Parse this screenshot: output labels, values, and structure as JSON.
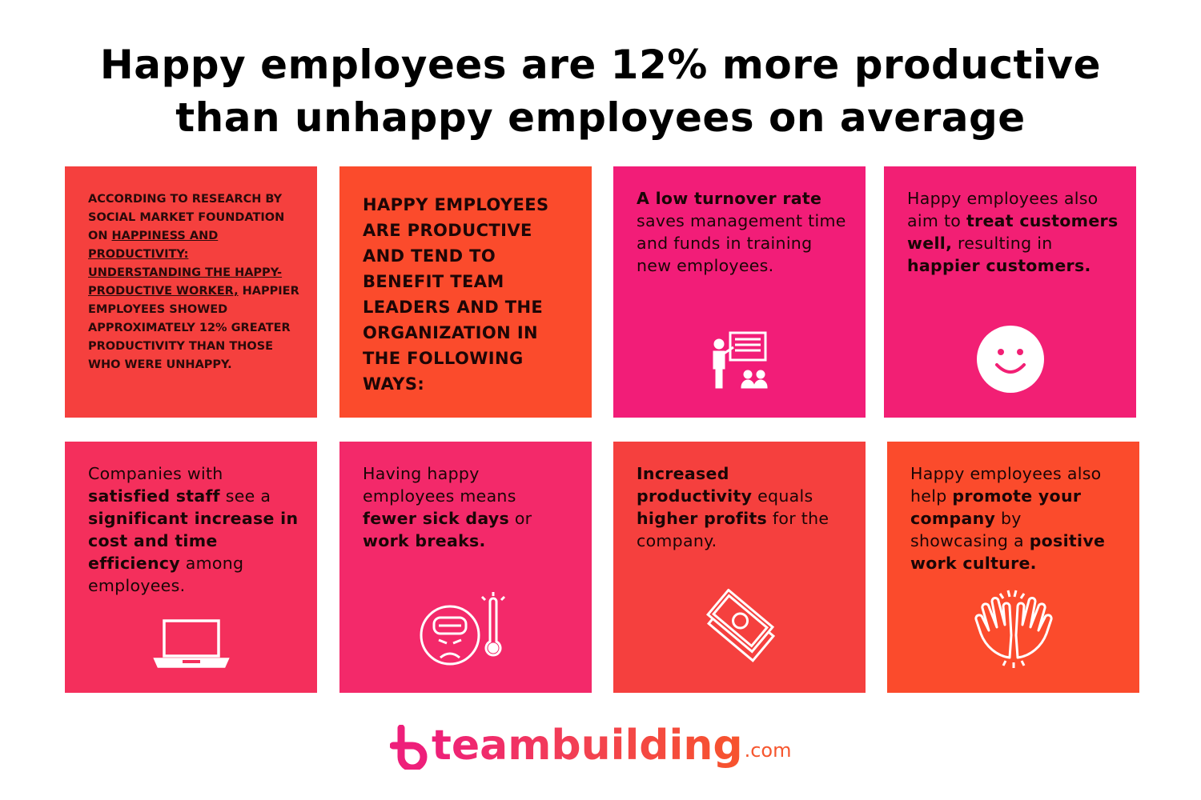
{
  "title": [
    "Happy employees are 12% more productive",
    "than unhappy employees on average"
  ],
  "colors": {
    "red": "#f5403e",
    "orange": "#fb4b2c",
    "pink": "#f21d78",
    "rose": "#f42f5c"
  },
  "cards": [
    {
      "color": "#f5403e",
      "style": "small",
      "icon": "",
      "segments": [
        {
          "t": "ACCORDING TO RESEARCH BY SOCIAL MARKET FOUNDATION ON "
        },
        {
          "t": "HAPPINESS AND PRODUCTIVITY: UNDERSTANDING THE HAPPY-PRODUCTIVE WORKER,",
          "u": true
        },
        {
          "t": " HAPPIER EMPLOYEES SHOWED APPROXIMATELY 12% GREATER PRODUCTIVITY THAN THOSE WHO WERE UNHAPPY."
        }
      ]
    },
    {
      "color": "#fb4b2c",
      "style": "caps",
      "icon": "",
      "segments": [
        {
          "t": "HAPPY EMPLOYEES ARE PRODUCTIVE AND TEND TO BENEFIT TEAM LEADERS AND THE ORGANIZATION IN THE FOLLOWING WAYS:"
        }
      ]
    },
    {
      "color": "#f21d78",
      "style": "body",
      "icon": "presentation-icon",
      "segments": [
        {
          "t": "A low turnover rate",
          "b": true
        },
        {
          "t": " saves management time and funds in training new employees."
        }
      ]
    },
    {
      "color": "#f21f74",
      "style": "body",
      "icon": "smiley-icon",
      "segments": [
        {
          "t": "Happy employees also aim to "
        },
        {
          "t": "treat customers well,",
          "b": true
        },
        {
          "t": " resulting in "
        },
        {
          "t": "happier customers.",
          "b": true
        }
      ]
    },
    {
      "color": "#f42f5c",
      "style": "body",
      "icon": "laptop-icon",
      "segments": [
        {
          "t": "Companies with "
        },
        {
          "t": "satisfied staff",
          "b": true
        },
        {
          "t": " see a "
        },
        {
          "t": "significant increase in cost and time efficiency",
          "b": true
        },
        {
          "t": " among employees."
        }
      ]
    },
    {
      "color": "#f3296a",
      "style": "body",
      "icon": "sick-thermometer-icon",
      "segments": [
        {
          "t": "Having happy employees means "
        },
        {
          "t": "fewer sick days",
          "b": true
        },
        {
          "t": " or "
        },
        {
          "t": "work breaks.",
          "b": true
        }
      ]
    },
    {
      "color": "#f5403e",
      "style": "body",
      "icon": "money-icon",
      "segments": [
        {
          "t": "Increased productivity",
          "b": true
        },
        {
          "t": " equals "
        },
        {
          "t": "higher profits",
          "b": true
        },
        {
          "t": " for the company."
        }
      ]
    },
    {
      "color": "#fb4b2c",
      "style": "body",
      "icon": "high-five-icon",
      "segments": [
        {
          "t": "Happy employees also help "
        },
        {
          "t": "promote your company",
          "b": true
        },
        {
          "t": " by showcasing a "
        },
        {
          "t": "positive work culture.",
          "b": true
        }
      ]
    }
  ],
  "logo": {
    "word": "teambuilding",
    "suffix": ".com"
  }
}
